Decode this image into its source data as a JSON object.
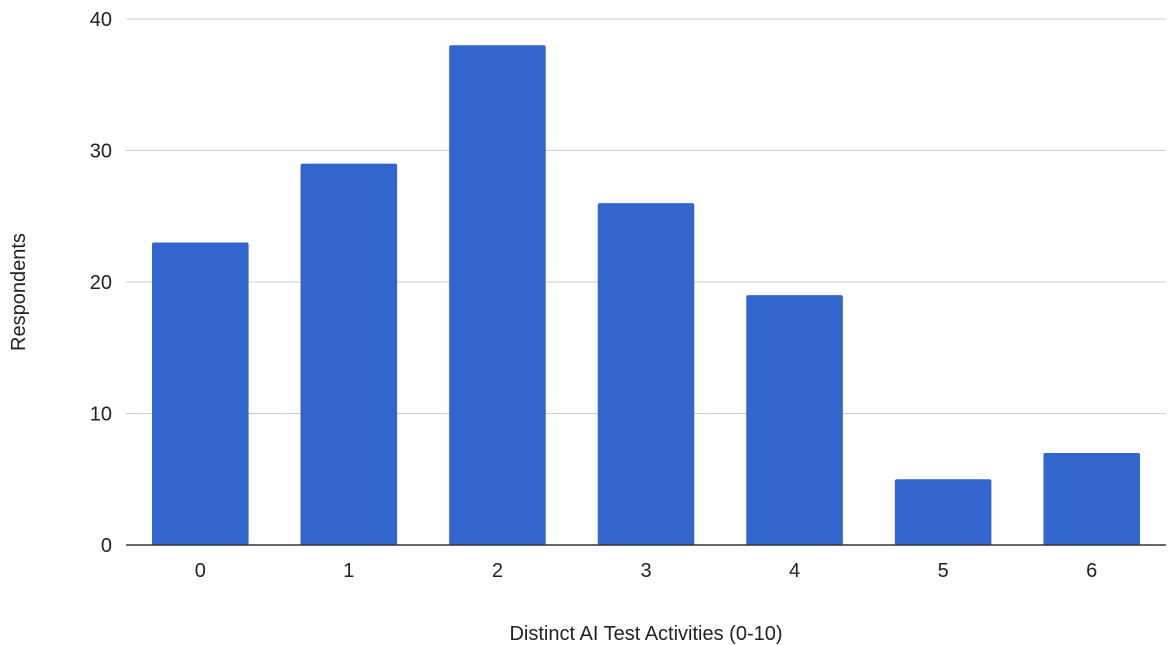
{
  "chart_data": {
    "type": "bar",
    "title": "",
    "xlabel": "Distinct AI Test Activities (0-10)",
    "ylabel": "Respondents",
    "categories": [
      "0",
      "1",
      "2",
      "3",
      "4",
      "5",
      "6"
    ],
    "values": [
      23,
      29,
      38,
      26,
      19,
      5,
      7
    ],
    "ylim": [
      0,
      40
    ],
    "yticks": [
      "0",
      "10",
      "20",
      "30",
      "40"
    ],
    "grid": true,
    "legend": "none",
    "bar_color": "#3366cc"
  }
}
